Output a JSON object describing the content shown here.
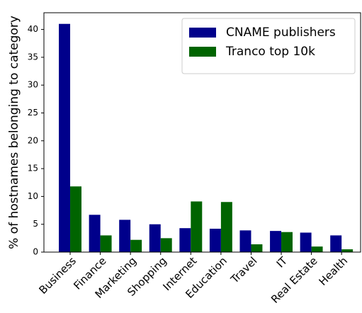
{
  "chart_data": {
    "type": "bar",
    "ylabel": "% of hostnames belonging to category",
    "categories": [
      "Business",
      "Finance",
      "Marketing",
      "Shopping",
      "Internet",
      "Education",
      "Travel",
      "IT",
      "Real Estate",
      "Health"
    ],
    "series": [
      {
        "name": "CNAME publishers",
        "color": "#00008b",
        "values": [
          41,
          6.7,
          5.8,
          5.0,
          4.3,
          4.2,
          3.9,
          3.8,
          3.5,
          3.0
        ]
      },
      {
        "name": "Tranco top 10k",
        "color": "#006400",
        "values": [
          11.8,
          3.0,
          2.2,
          2.5,
          9.1,
          9.0,
          1.4,
          3.6,
          1.0,
          0.5
        ]
      }
    ],
    "ylim": [
      0,
      43
    ],
    "yticks": [
      0,
      5,
      10,
      15,
      20,
      25,
      30,
      35,
      40
    ],
    "grid": false,
    "legend": "upper right"
  }
}
